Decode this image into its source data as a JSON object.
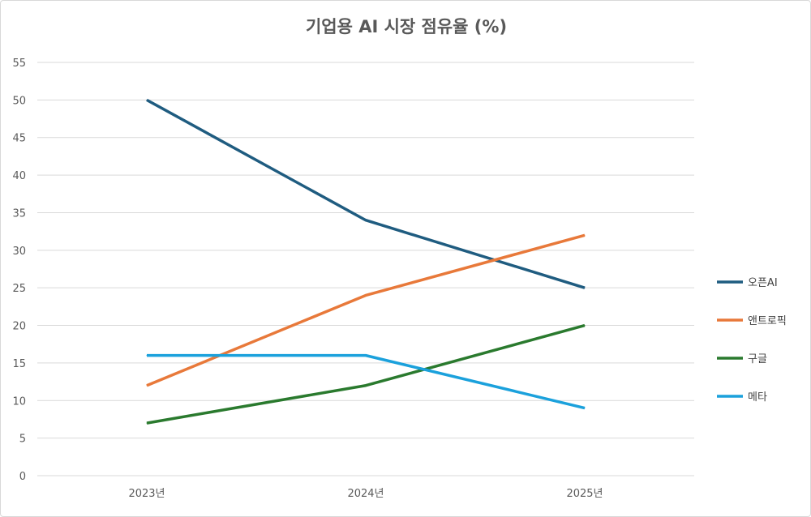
{
  "chart_data": {
    "type": "line",
    "title": "기업용 AI 시장 점유율 (%)",
    "categories": [
      "2023년",
      "2024년",
      "2025년"
    ],
    "ylim": [
      0,
      55
    ],
    "yticks": [
      0,
      5,
      10,
      15,
      20,
      25,
      30,
      35,
      40,
      45,
      50,
      55
    ],
    "grid": true,
    "legend_position": "right",
    "series": [
      {
        "name": "오픈AI",
        "values": [
          50,
          34,
          25
        ],
        "color": "#1f5c80"
      },
      {
        "name": "앤트로픽",
        "values": [
          12,
          24,
          32
        ],
        "color": "#e8793a"
      },
      {
        "name": "구글",
        "values": [
          7,
          12,
          20
        ],
        "color": "#2a7a2e"
      },
      {
        "name": "메타",
        "values": [
          16,
          16,
          9
        ],
        "color": "#1ba1dc"
      }
    ]
  }
}
